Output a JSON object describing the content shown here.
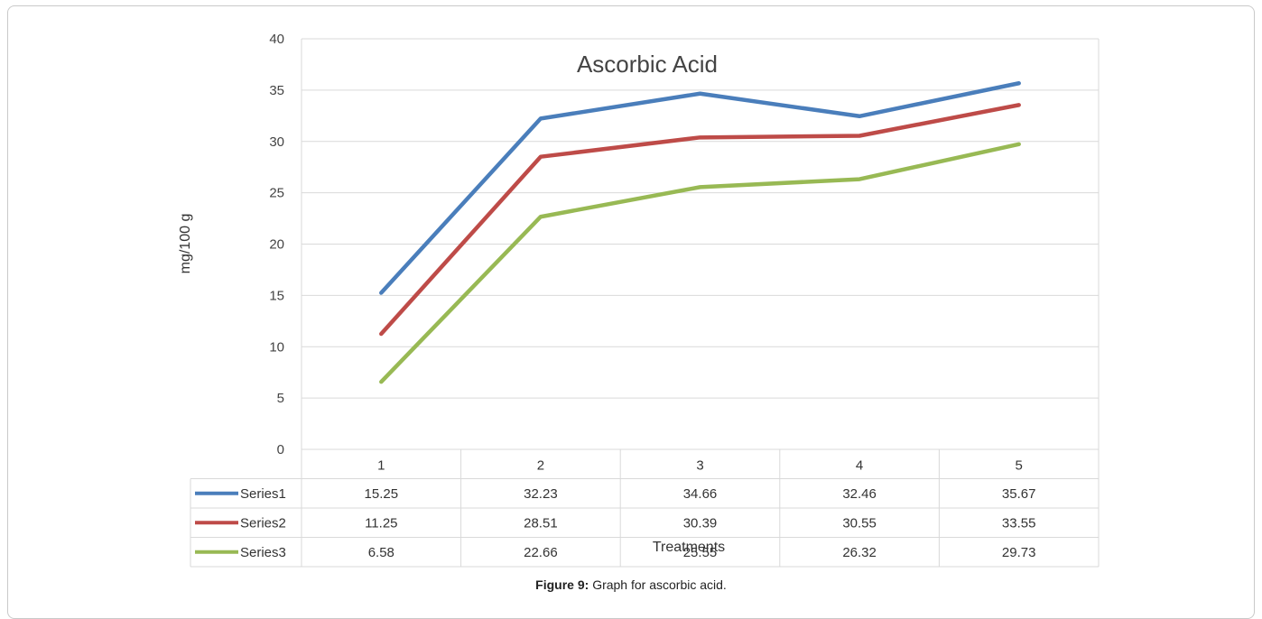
{
  "caption": {
    "label": "Figure 9:",
    "text": "Graph for ascorbic acid."
  },
  "chart_data": {
    "type": "line",
    "title": "Ascorbic Acid",
    "xlabel": "Treatments",
    "ylabel": "mg/100 g",
    "categories": [
      "1",
      "2",
      "3",
      "4",
      "5"
    ],
    "ylim": [
      0,
      40
    ],
    "yticks": [
      0,
      5,
      10,
      15,
      20,
      25,
      30,
      35,
      40
    ],
    "grid": true,
    "legend_position": "data-table-left",
    "series": [
      {
        "name": "Series1",
        "values": [
          15.25,
          32.23,
          34.66,
          32.46,
          35.67
        ],
        "color": "#4a7ebb"
      },
      {
        "name": "Series2",
        "values": [
          11.25,
          28.51,
          30.39,
          30.55,
          33.55
        ],
        "color": "#be4b48"
      },
      {
        "name": "Series3",
        "values": [
          6.58,
          22.66,
          25.55,
          26.32,
          29.73
        ],
        "color": "#98b954"
      }
    ],
    "table": {
      "rows": [
        {
          "series": "Series1",
          "cells": [
            "15.25",
            "32.23",
            "34.66",
            "32.46",
            "35.67"
          ]
        },
        {
          "series": "Series2",
          "cells": [
            "11.25",
            "28.51",
            "30.39",
            "30.55",
            "33.55"
          ]
        },
        {
          "series": "Series3",
          "cells": [
            "6.58",
            "22.66",
            "25.55",
            "26.32",
            "29.73"
          ]
        }
      ]
    }
  }
}
